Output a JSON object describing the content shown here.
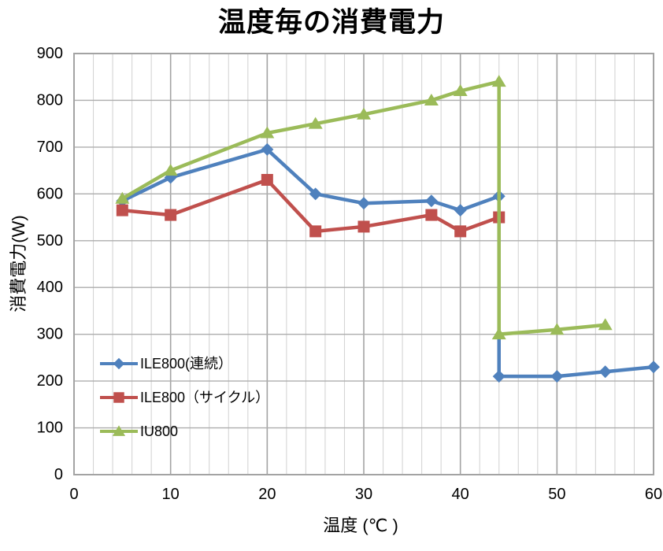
{
  "chart_data": {
    "type": "line",
    "title": "温度毎の消費電力",
    "xlabel": "温度 (℃ )",
    "ylabel": "消費電力(W)",
    "xlim": [
      0,
      60
    ],
    "ylim": [
      0,
      900
    ],
    "x_ticks": [
      0,
      10,
      20,
      30,
      40,
      50,
      60
    ],
    "y_ticks": [
      0,
      100,
      200,
      300,
      400,
      500,
      600,
      700,
      800,
      900
    ],
    "x_minor_step": 2,
    "grid": "on",
    "legend_position": "inside-lower-left",
    "colors": {
      "grid_minor": "#D5D5D5",
      "grid_major": "#A3A3A3",
      "grid_horizontal": "#ADADAD",
      "plot_border": "#A3A3A3",
      "text": "#000000",
      "background": "#FFFFFF"
    },
    "series": [
      {
        "name": "ILE800(連続）",
        "color": "#4F81BD",
        "marker": "diamond",
        "points": [
          [
            5,
            585
          ],
          [
            10,
            635
          ],
          [
            20,
            695
          ],
          [
            25,
            600
          ],
          [
            30,
            580
          ],
          [
            37,
            585
          ],
          [
            40,
            565
          ],
          [
            44,
            595
          ],
          [
            44,
            210
          ],
          [
            50,
            210
          ],
          [
            55,
            220
          ],
          [
            60,
            230
          ]
        ]
      },
      {
        "name": "ILE800（サイクル）",
        "color": "#C0504D",
        "marker": "square",
        "points": [
          [
            5,
            565
          ],
          [
            10,
            555
          ],
          [
            20,
            630
          ],
          [
            25,
            520
          ],
          [
            30,
            530
          ],
          [
            37,
            555
          ],
          [
            40,
            520
          ],
          [
            44,
            550
          ]
        ]
      },
      {
        "name": "IU800",
        "color": "#9BBB59",
        "marker": "triangle",
        "points": [
          [
            5,
            590
          ],
          [
            10,
            650
          ],
          [
            20,
            730
          ],
          [
            25,
            750
          ],
          [
            30,
            770
          ],
          [
            37,
            800
          ],
          [
            40,
            820
          ],
          [
            44,
            840
          ],
          [
            44,
            300
          ],
          [
            50,
            310
          ],
          [
            55,
            320
          ]
        ]
      }
    ]
  }
}
